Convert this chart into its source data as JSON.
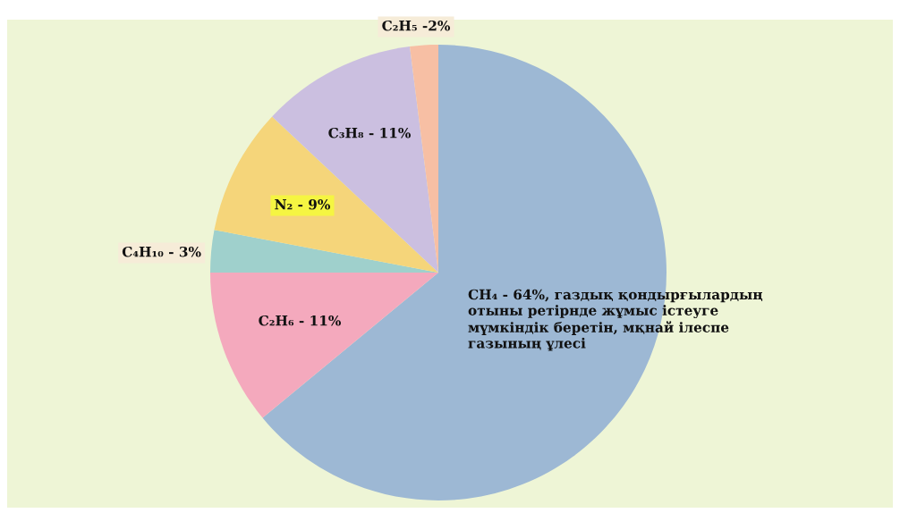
{
  "chart_data": {
    "type": "pie",
    "categories": [
      "CH₄ - 64%, газдық қондырғылардың\nотыны ретірнде жұмыс істеуге\nмүмкіндік беретін, мқнай ілеспе\nгазының ұлесі",
      "C₂H₆ - 11%",
      "C₄H₁₀ - 3%",
      "N₂ - 9%",
      "C₃H₈ - 11%",
      "C₂H₅ -2%"
    ],
    "values": [
      64,
      11,
      3,
      9,
      11,
      2
    ],
    "colors": [
      "#9db8d4",
      "#f4a9bd",
      "#9fd0cc",
      "#f5d57a",
      "#cbbfe0",
      "#f7bfa4"
    ]
  }
}
